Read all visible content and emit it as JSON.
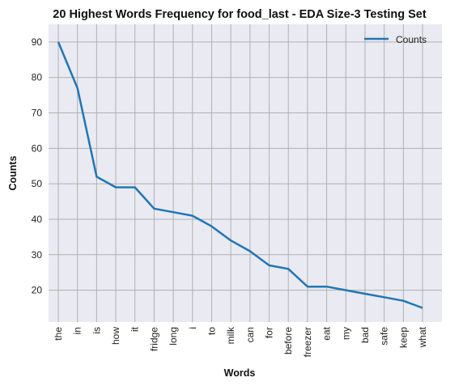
{
  "chart_data": {
    "type": "line",
    "title": "20 Highest Words Frequency for food_last - EDA Size-3 Testing Set",
    "xlabel": "Words",
    "ylabel": "Counts",
    "categories": [
      "the",
      "in",
      "is",
      "how",
      "it",
      "fridge",
      "long",
      "i",
      "to",
      "milk",
      "can",
      "for",
      "before",
      "freezer",
      "eat",
      "my",
      "bad",
      "safe",
      "keep",
      "what"
    ],
    "series": [
      {
        "name": "Counts",
        "color": "#1f77b4",
        "values": [
          90,
          77,
          52,
          49,
          49,
          43,
          42,
          41,
          38,
          34,
          31,
          27,
          26,
          21,
          21,
          20,
          19,
          18,
          17,
          15
        ]
      }
    ],
    "ylim": [
      11,
      95
    ],
    "yticks": [
      20,
      30,
      40,
      50,
      60,
      70,
      80,
      90
    ],
    "grid": true,
    "legend": "top-right",
    "background": "#eaeaf2",
    "grid_color": "#b0b0b0"
  }
}
